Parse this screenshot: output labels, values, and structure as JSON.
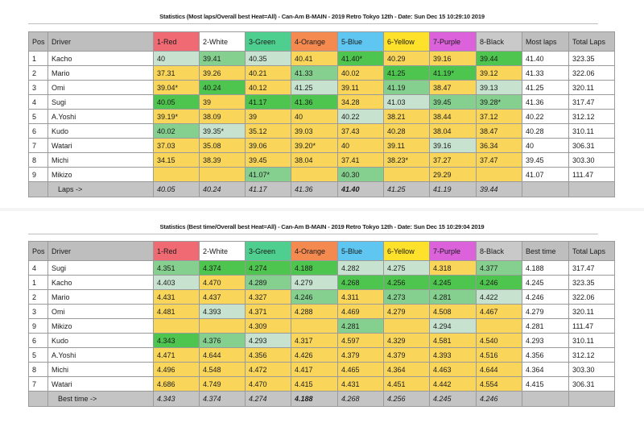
{
  "top": {
    "title": "Statistics (Most laps/Overall best Heat=All) - Can-Am B-MAIN - 2019 Retro Tokyo 12th - Date: Sun Dec 15 10:29:10 2019",
    "headers": [
      "Pos",
      "Driver",
      "1-Red",
      "2-White",
      "3-Green",
      "4-Orange",
      "5-Blue",
      "6-Yellow",
      "7-Purple",
      "8-Black",
      "Most laps",
      "Total Laps"
    ],
    "rows": [
      {
        "pos": "1",
        "driver": "Kacho",
        "cells": [
          "40",
          "39.41",
          "40.35",
          "40.41",
          "41.40*",
          "40.29",
          "39.16",
          "39.44"
        ],
        "shade": [
          "m",
          "g",
          "m",
          "y",
          "b",
          "y",
          "y",
          "b"
        ],
        "best": "41.40",
        "total": "323.35"
      },
      {
        "pos": "2",
        "driver": "Mario",
        "cells": [
          "37.31",
          "39.26",
          "40.21",
          "41.33",
          "40.02",
          "41.25",
          "41.19*",
          "39.12"
        ],
        "shade": [
          "y",
          "y",
          "y",
          "g",
          "y",
          "b",
          "b",
          "y"
        ],
        "best": "41.33",
        "total": "322.06"
      },
      {
        "pos": "3",
        "driver": "Omi",
        "cells": [
          "39.04*",
          "40.24",
          "40.12",
          "41.25",
          "39.11",
          "41.19",
          "38.47",
          "39.13"
        ],
        "shade": [
          "y",
          "b",
          "y",
          "m",
          "y",
          "g",
          "y",
          "m"
        ],
        "best": "41.25",
        "total": "320.11"
      },
      {
        "pos": "4",
        "driver": "Sugi",
        "cells": [
          "40.05",
          "39",
          "41.17",
          "41.36",
          "34.28",
          "41.03",
          "39.45",
          "39.28*"
        ],
        "shade": [
          "b",
          "y",
          "b",
          "b",
          "y",
          "m",
          "g",
          "g"
        ],
        "best": "41.36",
        "total": "317.47"
      },
      {
        "pos": "5",
        "driver": "A.Yoshi",
        "cells": [
          "39.19*",
          "38.09",
          "39",
          "40",
          "40.22",
          "38.21",
          "38.44",
          "37.12"
        ],
        "shade": [
          "y",
          "y",
          "y",
          "y",
          "m",
          "y",
          "y",
          "y"
        ],
        "best": "40.22",
        "total": "312.12"
      },
      {
        "pos": "6",
        "driver": "Kudo",
        "cells": [
          "40.02",
          "39.35*",
          "35.12",
          "39.03",
          "37.43",
          "40.28",
          "38.04",
          "38.47"
        ],
        "shade": [
          "g",
          "m",
          "y",
          "y",
          "y",
          "y",
          "y",
          "y"
        ],
        "best": "40.28",
        "total": "310.11"
      },
      {
        "pos": "7",
        "driver": "Watari",
        "cells": [
          "37.03",
          "35.08",
          "39.06",
          "39.20*",
          "40",
          "39.11",
          "39.16",
          "36.34"
        ],
        "shade": [
          "y",
          "y",
          "y",
          "y",
          "y",
          "y",
          "m",
          "y"
        ],
        "best": "40",
        "total": "306.31"
      },
      {
        "pos": "8",
        "driver": "Michi",
        "cells": [
          "34.15",
          "38.39",
          "39.45",
          "38.04",
          "37.41",
          "38.23*",
          "37.27",
          "37.47"
        ],
        "shade": [
          "y",
          "y",
          "y",
          "y",
          "y",
          "y",
          "y",
          "y"
        ],
        "best": "39.45",
        "total": "303.30"
      },
      {
        "pos": "9",
        "driver": "Mikizo",
        "cells": [
          "",
          "",
          "41.07*",
          "",
          "40.30",
          "",
          "29.29",
          ""
        ],
        "shade": [
          "y",
          "y",
          "g",
          "y",
          "g",
          "y",
          "y",
          "y"
        ],
        "best": "41.07",
        "total": "111.47"
      }
    ],
    "footer": {
      "label": "Laps ->",
      "values": [
        "40.05",
        "40.24",
        "41.17",
        "41.36",
        "41.40",
        "41.25",
        "41.19",
        "39.44"
      ]
    }
  },
  "bottom": {
    "title": "Statistics (Best time/Overall best Heat=All) - Can-Am B-MAIN - 2019 Retro Tokyo 12th - Date: Sun Dec 15 10:29:04 2019",
    "headers": [
      "Pos",
      "Driver",
      "1-Red",
      "2-White",
      "3-Green",
      "4-Orange",
      "5-Blue",
      "6-Yellow",
      "7-Purple",
      "8-Black",
      "Best time",
      "Total Laps"
    ],
    "rows": [
      {
        "pos": "4",
        "driver": "Sugi",
        "cells": [
          "4.351",
          "4.374",
          "4.274",
          "4.188",
          "4.282",
          "4.275",
          "4.318",
          "4.377"
        ],
        "shade": [
          "g",
          "b",
          "b",
          "b",
          "m",
          "m",
          "y",
          "g"
        ],
        "best": "4.188",
        "total": "317.47"
      },
      {
        "pos": "1",
        "driver": "Kacho",
        "cells": [
          "4.403",
          "4.470",
          "4.289",
          "4.279",
          "4.268",
          "4.256",
          "4.245",
          "4.246"
        ],
        "shade": [
          "m",
          "y",
          "g",
          "m",
          "b",
          "b",
          "b",
          "b"
        ],
        "best": "4.245",
        "total": "323.35"
      },
      {
        "pos": "2",
        "driver": "Mario",
        "cells": [
          "4.431",
          "4.437",
          "4.327",
          "4.246",
          "4.311",
          "4.273",
          "4.281",
          "4.422"
        ],
        "shade": [
          "y",
          "y",
          "y",
          "g",
          "y",
          "g",
          "g",
          "m"
        ],
        "best": "4.246",
        "total": "322.06"
      },
      {
        "pos": "3",
        "driver": "Omi",
        "cells": [
          "4.481",
          "4.393",
          "4.371",
          "4.288",
          "4.469",
          "4.279",
          "4.508",
          "4.467"
        ],
        "shade": [
          "y",
          "m",
          "y",
          "y",
          "y",
          "y",
          "y",
          "y"
        ],
        "best": "4.279",
        "total": "320.11"
      },
      {
        "pos": "9",
        "driver": "Mikizo",
        "cells": [
          "",
          "",
          "4.309",
          "",
          "4.281",
          "",
          "4.294",
          ""
        ],
        "shade": [
          "y",
          "y",
          "y",
          "y",
          "g",
          "y",
          "m",
          "y"
        ],
        "best": "4.281",
        "total": "111.47"
      },
      {
        "pos": "6",
        "driver": "Kudo",
        "cells": [
          "4.343",
          "4.376",
          "4.293",
          "4.317",
          "4.597",
          "4.329",
          "4.581",
          "4.540"
        ],
        "shade": [
          "b",
          "g",
          "m",
          "y",
          "y",
          "y",
          "y",
          "y"
        ],
        "best": "4.293",
        "total": "310.11"
      },
      {
        "pos": "5",
        "driver": "A.Yoshi",
        "cells": [
          "4.471",
          "4.644",
          "4.356",
          "4.426",
          "4.379",
          "4.379",
          "4.393",
          "4.516"
        ],
        "shade": [
          "y",
          "y",
          "y",
          "y",
          "y",
          "y",
          "y",
          "y"
        ],
        "best": "4.356",
        "total": "312.12"
      },
      {
        "pos": "8",
        "driver": "Michi",
        "cells": [
          "4.496",
          "4.548",
          "4.472",
          "4.417",
          "4.465",
          "4.364",
          "4.463",
          "4.644"
        ],
        "shade": [
          "y",
          "y",
          "y",
          "y",
          "y",
          "y",
          "y",
          "y"
        ],
        "best": "4.364",
        "total": "303.30"
      },
      {
        "pos": "7",
        "driver": "Watari",
        "cells": [
          "4.686",
          "4.749",
          "4.470",
          "4.415",
          "4.431",
          "4.451",
          "4.442",
          "4.554"
        ],
        "shade": [
          "y",
          "y",
          "y",
          "y",
          "y",
          "y",
          "y",
          "y"
        ],
        "best": "4.415",
        "total": "306.31"
      }
    ],
    "footer": {
      "label": "Best time ->",
      "values": [
        "4.343",
        "4.374",
        "4.274",
        "4.188",
        "4.268",
        "4.256",
        "4.245",
        "4.246"
      ]
    }
  },
  "colors": {
    "red": "#ef6a73",
    "white": "#ffffff",
    "green": "#4fcf8f",
    "orange": "#f58a50",
    "blue": "#5ec6f0",
    "yellow": "#fde12a",
    "purple": "#dc62dc",
    "black": "#c9c9c9",
    "best_cell": "#4ec54e",
    "good_cell": "#86d08f",
    "near_cell": "#c7e3cf",
    "other_cell": "#f9d65a"
  }
}
